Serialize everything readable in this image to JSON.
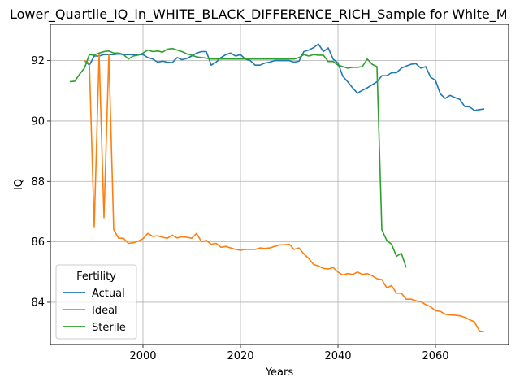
{
  "chart_data": {
    "type": "line",
    "title": "Lower_Quartile_IQ_in_WHITE_BLACK_DIFFERENCE_RICH_Sample for White_M",
    "xlabel": "Years",
    "ylabel": "IQ",
    "xlim": [
      1981,
      2075
    ],
    "ylim": [
      82.6,
      93.2
    ],
    "xticks": [
      2000,
      2020,
      2040,
      2060
    ],
    "yticks": [
      84,
      86,
      88,
      90,
      92
    ],
    "grid": true,
    "legend": {
      "title": "Fertility",
      "position": "lower-left"
    },
    "series": [
      {
        "name": "Actual",
        "color": "#1f77b4",
        "x": [
          1988,
          1989,
          1990,
          1991,
          1992,
          1993,
          1994,
          1995,
          1996,
          1997,
          1998,
          1999,
          2000,
          2001,
          2002,
          2003,
          2004,
          2005,
          2006,
          2007,
          2008,
          2009,
          2010,
          2011,
          2012,
          2013,
          2014,
          2015,
          2016,
          2017,
          2018,
          2019,
          2020,
          2021,
          2022,
          2023,
          2024,
          2025,
          2026,
          2027,
          2028,
          2029,
          2030,
          2031,
          2032,
          2033,
          2034,
          2035,
          2036,
          2037,
          2038,
          2039,
          2040,
          2041,
          2042,
          2043,
          2044,
          2045,
          2046,
          2047,
          2048,
          2049,
          2050,
          2051,
          2052,
          2053,
          2054,
          2055,
          2056,
          2057,
          2058,
          2059,
          2060,
          2061,
          2062,
          2063,
          2064,
          2065,
          2066,
          2067,
          2068,
          2069,
          2070
        ],
        "y": [
          92.0,
          91.85,
          92.15,
          92.15,
          92.2,
          92.2,
          92.2,
          92.22,
          92.2,
          92.2,
          92.2,
          92.2,
          92.2,
          92.1,
          92.05,
          91.95,
          91.98,
          91.95,
          91.93,
          92.1,
          92.03,
          92.07,
          92.15,
          92.25,
          92.3,
          92.3,
          91.85,
          91.95,
          92.1,
          92.2,
          92.25,
          92.15,
          92.2,
          92.05,
          92.0,
          91.85,
          91.85,
          91.92,
          91.95,
          92.0,
          92.0,
          92.0,
          92.0,
          91.95,
          91.98,
          92.3,
          92.35,
          92.43,
          92.55,
          92.3,
          92.42,
          92.05,
          91.92,
          91.48,
          91.3,
          91.1,
          90.92,
          91.02,
          91.1,
          91.2,
          91.3,
          91.5,
          91.5,
          91.6,
          91.6,
          91.75,
          91.82,
          91.88,
          91.9,
          91.75,
          91.8,
          91.45,
          91.35,
          90.9,
          90.75,
          90.85,
          90.78,
          90.72,
          90.48,
          90.47,
          90.35,
          90.38,
          90.4
        ]
      },
      {
        "name": "Ideal",
        "color": "#ff7f0e",
        "x": [
          1988,
          1989,
          1990,
          1991,
          1992,
          1993,
          1994,
          1995,
          1996,
          1997,
          1998,
          1999,
          2000,
          2001,
          2002,
          2003,
          2004,
          2005,
          2006,
          2007,
          2008,
          2009,
          2010,
          2011,
          2012,
          2013,
          2014,
          2015,
          2016,
          2017,
          2018,
          2019,
          2020,
          2021,
          2022,
          2023,
          2024,
          2025,
          2026,
          2027,
          2028,
          2029,
          2030,
          2031,
          2032,
          2033,
          2034,
          2035,
          2036,
          2037,
          2038,
          2039,
          2040,
          2041,
          2042,
          2043,
          2044,
          2045,
          2046,
          2047,
          2048,
          2049,
          2050,
          2051,
          2052,
          2053,
          2054,
          2055,
          2056,
          2057,
          2058,
          2059,
          2060,
          2061,
          2062,
          2063,
          2064,
          2065,
          2066,
          2067,
          2068,
          2069,
          2070
        ],
        "y": [
          92.0,
          91.9,
          86.5,
          92.2,
          86.8,
          92.2,
          86.4,
          86.12,
          86.12,
          85.95,
          85.97,
          86.02,
          86.1,
          86.28,
          86.18,
          86.2,
          86.15,
          86.12,
          86.22,
          86.13,
          86.17,
          86.15,
          86.12,
          86.28,
          86.0,
          86.05,
          85.92,
          85.95,
          85.82,
          85.85,
          85.8,
          85.75,
          85.72,
          85.75,
          85.75,
          85.75,
          85.8,
          85.78,
          85.8,
          85.85,
          85.9,
          85.9,
          85.92,
          85.75,
          85.8,
          85.6,
          85.45,
          85.25,
          85.2,
          85.12,
          85.1,
          85.15,
          85.0,
          84.9,
          84.95,
          84.92,
          85.0,
          84.92,
          84.95,
          84.88,
          84.78,
          84.75,
          84.48,
          84.55,
          84.3,
          84.3,
          84.1,
          84.1,
          84.05,
          84.02,
          83.92,
          83.85,
          83.72,
          83.7,
          83.6,
          83.58,
          83.57,
          83.55,
          83.5,
          83.42,
          83.35,
          83.05,
          83.02
        ]
      },
      {
        "name": "Sterile",
        "color": "#2ca02c",
        "x": [
          1985,
          1986,
          1987,
          1988,
          1989,
          1990,
          1991,
          1992,
          1993,
          1994,
          1995,
          1996,
          1997,
          1998,
          1999,
          2000,
          2001,
          2002,
          2003,
          2004,
          2005,
          2006,
          2007,
          2008,
          2009,
          2010,
          2011,
          2012,
          2013,
          2014,
          2015,
          2016,
          2017,
          2018,
          2019,
          2020,
          2021,
          2022,
          2023,
          2024,
          2025,
          2026,
          2027,
          2028,
          2029,
          2030,
          2031,
          2032,
          2033,
          2034,
          2035,
          2036,
          2037,
          2038,
          2039,
          2040,
          2041,
          2042,
          2043,
          2044,
          2045,
          2046,
          2047,
          2048,
          2049,
          2050,
          2051,
          2052,
          2053,
          2054
        ],
        "y": [
          91.3,
          91.32,
          91.55,
          91.75,
          92.2,
          92.18,
          92.25,
          92.3,
          92.32,
          92.25,
          92.25,
          92.2,
          92.05,
          92.15,
          92.18,
          92.25,
          92.35,
          92.3,
          92.32,
          92.28,
          92.38,
          92.4,
          92.35,
          92.3,
          92.22,
          92.18,
          92.12,
          92.1,
          92.08,
          92.05,
          92.05,
          92.05,
          92.05,
          92.05,
          92.05,
          92.05,
          92.05,
          92.05,
          92.05,
          92.05,
          92.05,
          92.05,
          92.05,
          92.05,
          92.05,
          92.05,
          92.05,
          92.1,
          92.2,
          92.15,
          92.2,
          92.18,
          92.18,
          91.97,
          91.97,
          91.85,
          91.8,
          91.75,
          91.78,
          91.78,
          91.8,
          92.05,
          91.88,
          91.8,
          86.4,
          86.05,
          85.92,
          85.52,
          85.62,
          85.15
        ]
      }
    ]
  }
}
